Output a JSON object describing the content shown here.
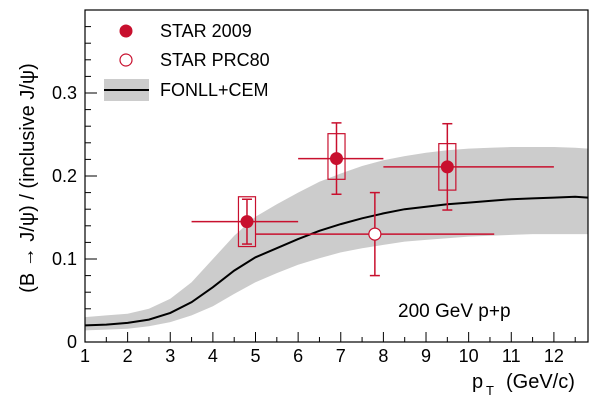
{
  "chart_data": {
    "type": "scatter",
    "xlabel": "p",
    "xlabel_sub": "T",
    "xlabel_unit": "(GeV/c)",
    "ylabel": "(B → J/ψ) / (inclusive J/ψ)",
    "xlim": [
      1,
      12.8
    ],
    "ylim": [
      0,
      0.4
    ],
    "x_ticks": [
      1,
      2,
      3,
      4,
      5,
      6,
      7,
      8,
      9,
      10,
      11,
      12
    ],
    "y_ticks": [
      0,
      0.1,
      0.2,
      0.3
    ],
    "y_tick_labels": [
      "0",
      "0.1",
      "0.2",
      "0.3"
    ],
    "annotation": "200 GeV p+p",
    "colors": {
      "data": "#c8102e",
      "band": "#cccccc",
      "line": "#000000"
    },
    "series": [
      {
        "name": "STAR 2009",
        "marker": "filled-circle",
        "points": [
          {
            "x": 4.8,
            "y": 0.145,
            "xerr_low": 1.3,
            "xerr_high": 1.2,
            "yerr_low": 0.027,
            "yerr_high": 0.027,
            "sys_low": 0.03,
            "sys_high": 0.03,
            "sys_half_width": 0.2
          },
          {
            "x": 6.9,
            "y": 0.221,
            "xerr_low": 0.9,
            "xerr_high": 1.1,
            "yerr_low": 0.043,
            "yerr_high": 0.043,
            "sys_low": 0.025,
            "sys_high": 0.03,
            "sys_half_width": 0.2
          },
          {
            "x": 9.5,
            "y": 0.211,
            "xerr_low": 1.5,
            "xerr_high": 2.5,
            "yerr_low": 0.052,
            "yerr_high": 0.052,
            "sys_low": 0.028,
            "sys_high": 0.028,
            "sys_half_width": 0.2
          }
        ]
      },
      {
        "name": "STAR PRC80",
        "marker": "open-circle",
        "points": [
          {
            "x": 7.8,
            "y": 0.13,
            "xerr_low": 2.8,
            "xerr_high": 2.8,
            "yerr_low": 0.05,
            "yerr_high": 0.05
          }
        ]
      },
      {
        "name": "FONLL+CEM",
        "style": "line-with-band",
        "x": [
          1,
          1.5,
          2,
          2.5,
          3,
          3.5,
          4,
          4.5,
          5,
          5.5,
          6,
          6.5,
          7,
          7.5,
          8,
          8.5,
          9,
          9.5,
          10,
          10.5,
          11,
          11.5,
          12,
          12.5,
          12.8
        ],
        "y": [
          0.02,
          0.021,
          0.023,
          0.027,
          0.035,
          0.048,
          0.066,
          0.086,
          0.102,
          0.113,
          0.124,
          0.134,
          0.142,
          0.149,
          0.155,
          0.16,
          0.163,
          0.166,
          0.168,
          0.17,
          0.172,
          0.173,
          0.174,
          0.175,
          0.174
        ],
        "band_low": [
          0.014,
          0.015,
          0.016,
          0.019,
          0.024,
          0.032,
          0.043,
          0.058,
          0.072,
          0.083,
          0.093,
          0.101,
          0.108,
          0.113,
          0.117,
          0.121,
          0.123,
          0.125,
          0.127,
          0.128,
          0.129,
          0.13,
          0.13,
          0.13,
          0.13
        ],
        "band_high": [
          0.03,
          0.032,
          0.034,
          0.04,
          0.052,
          0.072,
          0.1,
          0.128,
          0.151,
          0.166,
          0.18,
          0.193,
          0.203,
          0.212,
          0.219,
          0.224,
          0.228,
          0.231,
          0.233,
          0.234,
          0.235,
          0.235,
          0.235,
          0.234,
          0.233
        ]
      }
    ]
  }
}
